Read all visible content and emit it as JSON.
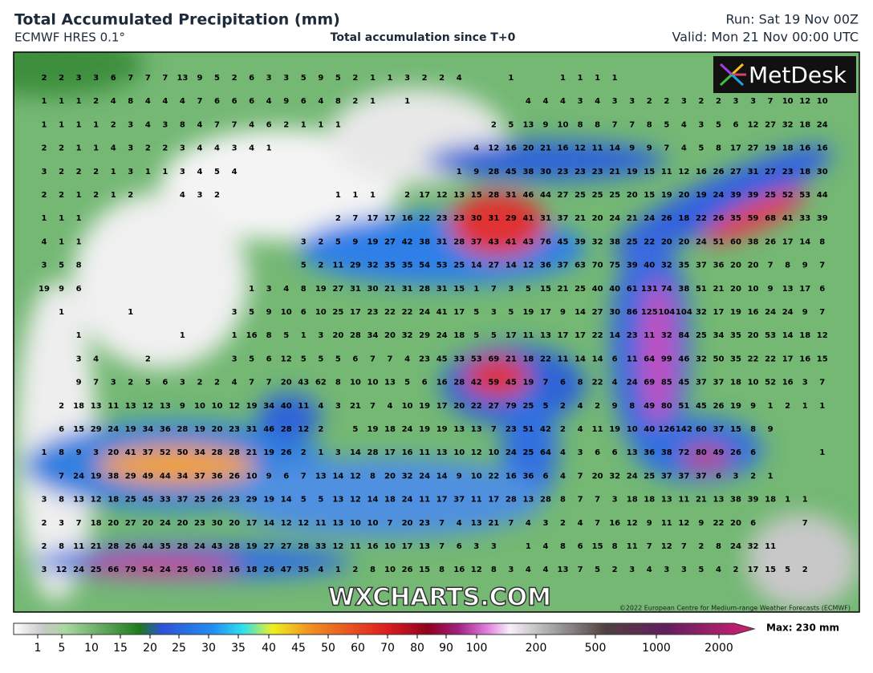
{
  "header": {
    "title": "Total Accumulated Precipitation (mm)",
    "model": "ECMWF HRES 0.1°",
    "subtitle": "Total accumulation since T+0",
    "run": "Run: Sat 19 Nov 00Z",
    "valid": "Valid: Mon 21 Nov 00:00 UTC"
  },
  "logo": "MetDesk",
  "watermark": "WXCHARTS.COM",
  "copyright": "©2022 European Centre for Medium-range Weather Forecasts (ECMWF)",
  "grid_values": [
    [
      2,
      2,
      3,
      3,
      6,
      7,
      7,
      7,
      13,
      9,
      5,
      2,
      6,
      3,
      3,
      5,
      9,
      5,
      2,
      1,
      1,
      3,
      2,
      2,
      4,
      null,
      null,
      1,
      null,
      null,
      1,
      1,
      1,
      1
    ],
    [
      1,
      1,
      1,
      2,
      4,
      8,
      4,
      4,
      4,
      7,
      6,
      6,
      6,
      4,
      9,
      6,
      4,
      8,
      2,
      1,
      null,
      1,
      null,
      null,
      null,
      null,
      null,
      null,
      4,
      4,
      4,
      3,
      4,
      3,
      3,
      2,
      2,
      3,
      2,
      2,
      3,
      3,
      7,
      10,
      12,
      10
    ],
    [
      1,
      1,
      1,
      1,
      2,
      3,
      4,
      3,
      8,
      4,
      7,
      7,
      4,
      6,
      2,
      1,
      1,
      1,
      null,
      null,
      null,
      null,
      null,
      null,
      null,
      null,
      2,
      5,
      13,
      9,
      10,
      8,
      8,
      7,
      7,
      8,
      5,
      4,
      3,
      5,
      6,
      12,
      27,
      32,
      18,
      24
    ],
    [
      2,
      2,
      1,
      1,
      4,
      3,
      2,
      2,
      3,
      4,
      4,
      3,
      4,
      1,
      null,
      null,
      null,
      null,
      null,
      null,
      null,
      null,
      null,
      null,
      null,
      4,
      12,
      16,
      20,
      21,
      16,
      12,
      11,
      14,
      9,
      9,
      7,
      4,
      5,
      8,
      17,
      27,
      19,
      18,
      16,
      16
    ],
    [
      3,
      2,
      2,
      2,
      1,
      3,
      1,
      1,
      3,
      4,
      5,
      4,
      null,
      null,
      null,
      null,
      null,
      null,
      null,
      null,
      null,
      null,
      null,
      null,
      1,
      9,
      28,
      45,
      38,
      30,
      23,
      23,
      23,
      21,
      19,
      15,
      11,
      12,
      16,
      26,
      27,
      31,
      27,
      23,
      18,
      30
    ],
    [
      2,
      2,
      1,
      2,
      1,
      2,
      null,
      null,
      4,
      3,
      2,
      null,
      null,
      null,
      null,
      null,
      null,
      1,
      1,
      1,
      null,
      2,
      17,
      12,
      13,
      15,
      28,
      31,
      46,
      44,
      27,
      25,
      25,
      25,
      20,
      15,
      19,
      20,
      19,
      24,
      39,
      39,
      25,
      52,
      53,
      44
    ],
    [
      1,
      1,
      1,
      null,
      null,
      null,
      null,
      null,
      null,
      null,
      null,
      null,
      null,
      null,
      null,
      null,
      null,
      2,
      7,
      17,
      17,
      16,
      22,
      23,
      23,
      30,
      31,
      29,
      41,
      31,
      37,
      21,
      20,
      24,
      21,
      24,
      26,
      18,
      22,
      26,
      35,
      59,
      68,
      41,
      33,
      39
    ],
    [
      4,
      1,
      1,
      null,
      null,
      null,
      null,
      null,
      null,
      null,
      null,
      null,
      null,
      null,
      null,
      3,
      2,
      5,
      9,
      19,
      27,
      42,
      38,
      31,
      28,
      37,
      43,
      41,
      43,
      76,
      45,
      39,
      32,
      38,
      25,
      22,
      20,
      20,
      24,
      51,
      60,
      38,
      26,
      17,
      14,
      8
    ],
    [
      3,
      5,
      8,
      null,
      null,
      null,
      null,
      null,
      null,
      null,
      null,
      null,
      null,
      null,
      null,
      5,
      2,
      11,
      29,
      32,
      35,
      35,
      54,
      53,
      25,
      14,
      27,
      14,
      12,
      36,
      37,
      63,
      70,
      75,
      39,
      40,
      32,
      35,
      37,
      36,
      20,
      20,
      7,
      8,
      9,
      7
    ],
    [
      19,
      9,
      6,
      null,
      null,
      null,
      null,
      null,
      null,
      null,
      null,
      null,
      1,
      3,
      4,
      8,
      19,
      27,
      31,
      30,
      21,
      31,
      28,
      31,
      15,
      1,
      7,
      3,
      5,
      15,
      21,
      25,
      40,
      40,
      61,
      131,
      74,
      38,
      51,
      21,
      20,
      10,
      9,
      13,
      17,
      6
    ],
    [
      null,
      1,
      null,
      null,
      null,
      1,
      null,
      null,
      null,
      null,
      null,
      3,
      5,
      9,
      10,
      6,
      10,
      25,
      17,
      23,
      22,
      22,
      24,
      41,
      17,
      5,
      3,
      5,
      19,
      17,
      9,
      14,
      27,
      30,
      86,
      125,
      104,
      104,
      32,
      17,
      19,
      16,
      24,
      24,
      9,
      7
    ],
    [
      null,
      null,
      1,
      null,
      null,
      null,
      null,
      null,
      1,
      null,
      null,
      1,
      16,
      8,
      5,
      1,
      3,
      20,
      28,
      34,
      20,
      32,
      29,
      24,
      18,
      5,
      5,
      17,
      11,
      13,
      17,
      17,
      22,
      14,
      23,
      11,
      32,
      84,
      25,
      34,
      35,
      20,
      53,
      14,
      18,
      12
    ],
    [
      null,
      null,
      3,
      4,
      null,
      null,
      2,
      null,
      null,
      null,
      null,
      3,
      5,
      6,
      12,
      5,
      5,
      5,
      6,
      7,
      7,
      4,
      23,
      45,
      33,
      53,
      69,
      21,
      18,
      22,
      11,
      14,
      14,
      6,
      11,
      64,
      99,
      46,
      32,
      50,
      35,
      22,
      22,
      17,
      16,
      15
    ],
    [
      null,
      null,
      9,
      7,
      3,
      2,
      5,
      6,
      3,
      2,
      2,
      4,
      7,
      7,
      20,
      43,
      62,
      8,
      10,
      10,
      13,
      5,
      6,
      16,
      28,
      42,
      59,
      45,
      19,
      7,
      6,
      8,
      22,
      4,
      24,
      69,
      85,
      45,
      37,
      37,
      18,
      10,
      52,
      16,
      3,
      7
    ],
    [
      null,
      2,
      18,
      13,
      11,
      13,
      12,
      13,
      9,
      10,
      10,
      12,
      19,
      34,
      40,
      11,
      4,
      3,
      21,
      7,
      4,
      10,
      19,
      17,
      20,
      22,
      27,
      79,
      25,
      5,
      2,
      4,
      2,
      9,
      8,
      49,
      80,
      51,
      45,
      26,
      19,
      9,
      1,
      2,
      1,
      1
    ],
    [
      null,
      6,
      15,
      29,
      24,
      19,
      34,
      36,
      28,
      19,
      20,
      23,
      31,
      46,
      28,
      12,
      2,
      null,
      5,
      19,
      18,
      24,
      19,
      19,
      13,
      13,
      7,
      23,
      51,
      42,
      2,
      4,
      11,
      19,
      10,
      40,
      126,
      142,
      60,
      37,
      15,
      8,
      9
    ],
    [
      1,
      8,
      9,
      3,
      20,
      41,
      37,
      52,
      50,
      34,
      28,
      28,
      21,
      19,
      26,
      2,
      1,
      3,
      14,
      28,
      17,
      16,
      11,
      13,
      10,
      12,
      10,
      24,
      25,
      64,
      4,
      3,
      6,
      6,
      13,
      36,
      38,
      72,
      80,
      49,
      26,
      6,
      null,
      null,
      null,
      1
    ],
    [
      null,
      7,
      24,
      19,
      38,
      29,
      49,
      44,
      34,
      37,
      36,
      26,
      10,
      9,
      6,
      7,
      13,
      14,
      12,
      8,
      20,
      32,
      24,
      14,
      9,
      10,
      22,
      16,
      36,
      6,
      4,
      7,
      20,
      32,
      24,
      25,
      37,
      37,
      37,
      6,
      3,
      2,
      1
    ],
    [
      3,
      8,
      13,
      12,
      18,
      25,
      45,
      33,
      37,
      25,
      26,
      23,
      29,
      19,
      14,
      5,
      5,
      13,
      12,
      14,
      18,
      24,
      11,
      17,
      37,
      11,
      17,
      28,
      13,
      28,
      8,
      7,
      7,
      3,
      18,
      18,
      13,
      11,
      21,
      13,
      38,
      39,
      18,
      1,
      1
    ],
    [
      2,
      3,
      7,
      18,
      20,
      27,
      20,
      24,
      20,
      23,
      30,
      20,
      17,
      14,
      12,
      12,
      11,
      13,
      10,
      10,
      7,
      20,
      23,
      7,
      4,
      13,
      21,
      7,
      4,
      3,
      2,
      4,
      7,
      16,
      12,
      9,
      11,
      12,
      9,
      22,
      20,
      6,
      null,
      null,
      7
    ],
    [
      2,
      8,
      11,
      21,
      28,
      26,
      44,
      35,
      28,
      24,
      43,
      28,
      19,
      27,
      27,
      28,
      33,
      12,
      11,
      16,
      10,
      17,
      13,
      7,
      6,
      3,
      3,
      null,
      1,
      4,
      8,
      6,
      15,
      8,
      11,
      7,
      12,
      7,
      2,
      8,
      24,
      32,
      11
    ],
    [
      3,
      12,
      24,
      25,
      66,
      79,
      54,
      24,
      25,
      60,
      18,
      16,
      18,
      26,
      47,
      35,
      4,
      1,
      2,
      8,
      10,
      26,
      15,
      8,
      16,
      12,
      8,
      3,
      4,
      4,
      13,
      7,
      5,
      2,
      3,
      4,
      3,
      3,
      5,
      4,
      2,
      17,
      15,
      5,
      2
    ]
  ],
  "colorbar": {
    "ticks": [
      1,
      5,
      10,
      15,
      20,
      25,
      30,
      35,
      40,
      45,
      50,
      60,
      70,
      80,
      90,
      100,
      200,
      500,
      1000,
      2000
    ],
    "max_label": "Max: 230 mm"
  }
}
